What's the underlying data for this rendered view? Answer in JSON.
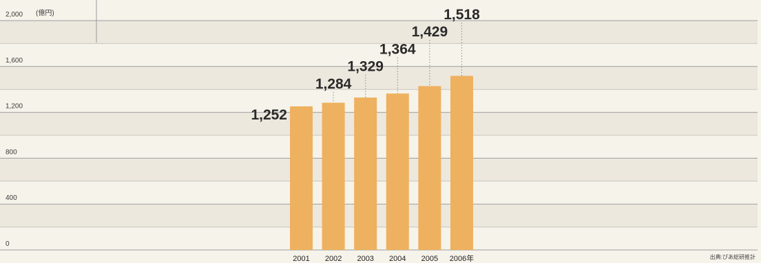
{
  "chart_data": {
    "type": "bar",
    "categories": [
      "2001",
      "2002",
      "2003",
      "2004",
      "2005",
      "2006年"
    ],
    "values": [
      1252,
      1284,
      1329,
      1364,
      1429,
      1518
    ],
    "value_labels": [
      "1,252",
      "1,284",
      "1,329",
      "1,364",
      "1,429",
      "1,518"
    ],
    "ylim": [
      0,
      2000
    ],
    "yticks": [
      0,
      400,
      800,
      1200,
      1600,
      2000
    ],
    "ytick_labels": [
      "0",
      "400",
      "800",
      "1,200",
      "1,600",
      "2,000"
    ],
    "unit": "(億円)",
    "source": "出典:ぴあ総研推計",
    "grid": true,
    "bar_color": "#eeb15f"
  }
}
